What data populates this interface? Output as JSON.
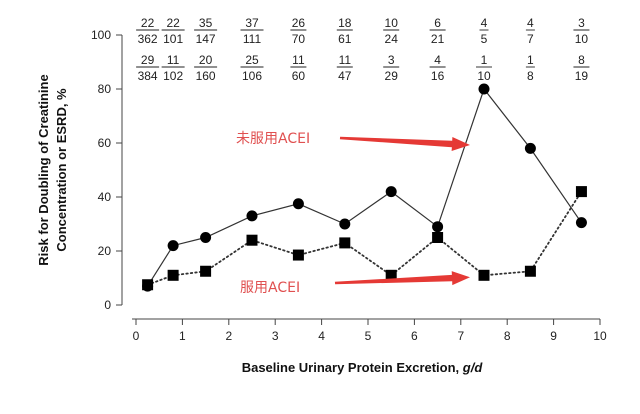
{
  "chart_data": {
    "type": "line",
    "xlabel": "Baseline Urinary Protein Excretion, g/d",
    "xlabel_main": "Baseline Urinary Protein Excretion, ",
    "xlabel_unit": "g/d",
    "ylabel_line1": "Risk for Doubling of Creatinine",
    "ylabel_line2": "Concentration or ESRD, %",
    "xlim": [
      0,
      10
    ],
    "ylim": [
      0,
      100
    ],
    "x_ticks": [
      "0",
      "1",
      "2",
      "3",
      "4",
      "5",
      "6",
      "7",
      "8",
      "9",
      "10"
    ],
    "y_ticks": [
      "0",
      "20",
      "40",
      "60",
      "80",
      "100"
    ],
    "grid": false,
    "x": [
      0.25,
      0.8,
      1.5,
      2.5,
      3.5,
      4.5,
      5.5,
      6.5,
      7.5,
      8.5,
      9.6
    ],
    "series": [
      {
        "name": "未服用ACEI",
        "marker": "circle",
        "line": "solid",
        "values": [
          7,
          22,
          25,
          33,
          37.5,
          30,
          42,
          29,
          80,
          58,
          30.5
        ],
        "fractions": [
          {
            "num": "22",
            "den": "362"
          },
          {
            "num": "22",
            "den": "101"
          },
          {
            "num": "35",
            "den": "147"
          },
          {
            "num": "37",
            "den": "111"
          },
          {
            "num": "26",
            "den": "70"
          },
          {
            "num": "18",
            "den": "61"
          },
          {
            "num": "10",
            "den": "24"
          },
          {
            "num": "6",
            "den": "21"
          },
          {
            "num": "4",
            "den": "5"
          },
          {
            "num": "4",
            "den": "7"
          },
          {
            "num": "3",
            "den": "10"
          }
        ]
      },
      {
        "name": "服用ACEI",
        "marker": "square",
        "line": "dotted",
        "values": [
          7.5,
          11,
          12.5,
          24,
          18.5,
          23,
          11,
          25,
          11,
          12.5,
          42
        ],
        "fractions": [
          {
            "num": "29",
            "den": "384"
          },
          {
            "num": "11",
            "den": "102"
          },
          {
            "num": "20",
            "den": "160"
          },
          {
            "num": "25",
            "den": "106"
          },
          {
            "num": "11",
            "den": "60"
          },
          {
            "num": "11",
            "den": "47"
          },
          {
            "num": "3",
            "den": "29"
          },
          {
            "num": "4",
            "den": "16"
          },
          {
            "num": "1",
            "den": "10"
          },
          {
            "num": "1",
            "den": "8"
          },
          {
            "num": "8",
            "den": "19"
          }
        ]
      }
    ],
    "annotations": [
      {
        "text": "未服用ACEI",
        "series": 0,
        "arrow_to_point": 8
      },
      {
        "text": "服用ACEI",
        "series": 1,
        "arrow_to_point": 8
      }
    ],
    "arrow_color": "#e53935",
    "annotation_color": "#e05050"
  }
}
